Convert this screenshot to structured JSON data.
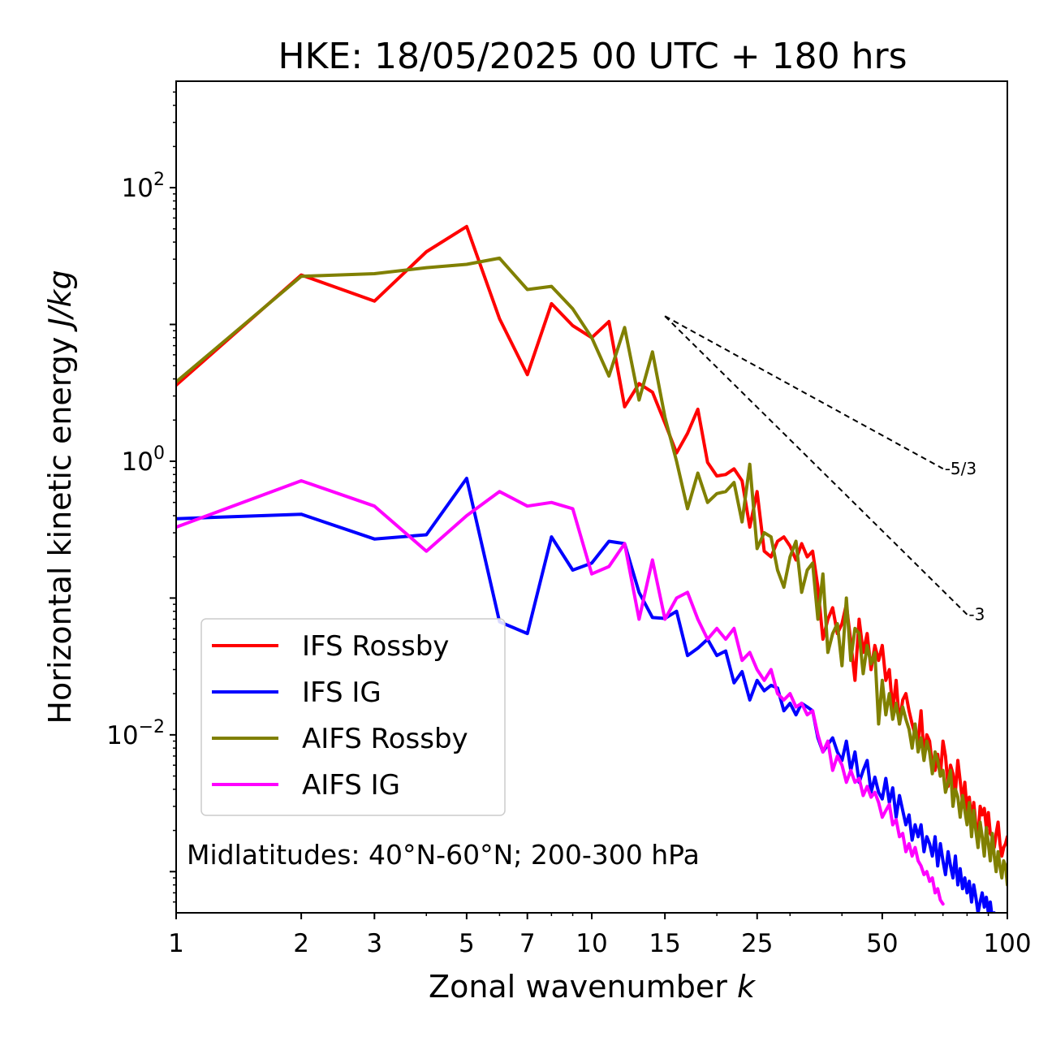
{
  "chart_data": {
    "type": "line",
    "title": "HKE: 18/05/2025 00 UTC + 180 hrs",
    "xlabel": "Zonal wavenumber",
    "xlabel_symbol": "k",
    "ylabel": "Horizontal kinetic energy",
    "ylabel_units": "J/kg",
    "x_scale": "log",
    "y_scale": "log",
    "xlim": [
      1,
      100
    ],
    "ylim": [
      0.0005,
      600
    ],
    "x_ticks": [
      1,
      2,
      3,
      5,
      7,
      10,
      15,
      25,
      50,
      100
    ],
    "x_tick_labels": [
      "1",
      "2",
      "3",
      "5",
      "7",
      "10",
      "15",
      "25",
      "50",
      "100"
    ],
    "y_ticks": [
      {
        "value": 100,
        "base": "10",
        "exp": "2"
      },
      {
        "value": 1,
        "base": "10",
        "exp": "0"
      },
      {
        "value": 0.01,
        "base": "10",
        "exp": "−2"
      }
    ],
    "grid": false,
    "legend_position": "lower-left",
    "annotation": "Midlatitudes: 40°N-60°N; 200-300 hPa",
    "reference_slopes": [
      {
        "label": "-5/3",
        "slope": -1.6667,
        "x": [
          15,
          70
        ],
        "y0": 11.5
      },
      {
        "label": "-3",
        "slope": -3,
        "x": [
          15,
          80
        ],
        "y0": 11.5
      }
    ],
    "series": [
      {
        "name": "IFS Rossby",
        "color": "#ff0000",
        "x": [
          1,
          2,
          3,
          4,
          5,
          6,
          7,
          8,
          9,
          10,
          11,
          12,
          13,
          14,
          15,
          16,
          17,
          18,
          19,
          20,
          21,
          22,
          23,
          24,
          25,
          26,
          27,
          28,
          29,
          30,
          31,
          32,
          33,
          34,
          35,
          36,
          37,
          38,
          39,
          40,
          41,
          42,
          43,
          44,
          45,
          46,
          47,
          48,
          49,
          50,
          51,
          52,
          53,
          54,
          55,
          56,
          57,
          58,
          59,
          60,
          61,
          62,
          63,
          64,
          65,
          66,
          67,
          68,
          69,
          70,
          71,
          72,
          73,
          74,
          75,
          76,
          77,
          78,
          79,
          80,
          81,
          82,
          83,
          84,
          85,
          86,
          87,
          88,
          89,
          90,
          91,
          92,
          93,
          94,
          95,
          96,
          97,
          98,
          99,
          100
        ],
        "y": [
          3.6,
          23,
          14.8,
          34,
          52,
          11,
          4.3,
          14.2,
          9.8,
          8,
          10.5,
          2.5,
          3.7,
          3.2,
          1.9,
          1.15,
          1.6,
          2.4,
          0.98,
          0.78,
          0.8,
          0.88,
          0.72,
          0.33,
          0.6,
          0.22,
          0.2,
          0.26,
          0.28,
          0.24,
          0.19,
          0.25,
          0.2,
          0.22,
          0.12,
          0.05,
          0.07,
          0.085,
          0.055,
          0.065,
          0.09,
          0.048,
          0.025,
          0.07,
          0.04,
          0.055,
          0.03,
          0.045,
          0.035,
          0.045,
          0.025,
          0.03,
          0.015,
          0.025,
          0.012,
          0.018,
          0.02,
          0.015,
          0.012,
          0.01,
          0.009,
          0.015,
          0.007,
          0.01,
          0.009,
          0.006,
          0.0055,
          0.0072,
          0.005,
          0.009,
          0.007,
          0.0042,
          0.006,
          0.0052,
          0.0038,
          0.0065,
          0.0046,
          0.0032,
          0.0045,
          0.0028,
          0.0035,
          0.0024,
          0.0032,
          0.0022,
          0.0018,
          0.003,
          0.0026,
          0.0029,
          0.0021,
          0.0027,
          0.0019,
          0.0018,
          0.0015,
          0.0019,
          0.0023,
          0.0016,
          0.0013,
          0.0015,
          0.0016,
          0.0018
        ]
      },
      {
        "name": "IFS IG",
        "color": "#0000ff",
        "x": [
          1,
          2,
          3,
          4,
          5,
          6,
          7,
          8,
          9,
          10,
          11,
          12,
          13,
          14,
          15,
          16,
          17,
          18,
          19,
          20,
          21,
          22,
          23,
          24,
          25,
          26,
          27,
          28,
          29,
          30,
          31,
          32,
          33,
          34,
          35,
          36,
          37,
          38,
          39,
          40,
          41,
          42,
          43,
          44,
          45,
          46,
          47,
          48,
          49,
          50,
          51,
          52,
          53,
          54,
          55,
          56,
          57,
          58,
          59,
          60,
          61,
          62,
          63,
          64,
          65,
          66,
          67,
          68,
          69,
          70,
          71,
          72,
          73,
          74,
          75,
          76,
          77,
          78,
          79,
          80,
          81,
          82,
          83,
          84,
          85,
          86,
          87,
          88,
          89,
          90,
          91,
          92,
          93,
          94,
          95,
          96,
          97,
          98,
          99,
          100
        ],
        "y": [
          0.38,
          0.41,
          0.27,
          0.29,
          0.75,
          0.067,
          0.055,
          0.28,
          0.16,
          0.18,
          0.26,
          0.25,
          0.11,
          0.072,
          0.071,
          0.08,
          0.038,
          0.043,
          0.05,
          0.038,
          0.041,
          0.024,
          0.029,
          0.018,
          0.025,
          0.021,
          0.023,
          0.022,
          0.015,
          0.017,
          0.014,
          0.017,
          0.016,
          0.015,
          0.0095,
          0.0075,
          0.0085,
          0.0095,
          0.0075,
          0.0065,
          0.009,
          0.0055,
          0.0075,
          0.0045,
          0.0055,
          0.0065,
          0.0038,
          0.0049,
          0.0038,
          0.0034,
          0.0048,
          0.0032,
          0.0041,
          0.0025,
          0.0036,
          0.0028,
          0.0022,
          0.0026,
          0.0017,
          0.0022,
          0.0018,
          0.0022,
          0.0014,
          0.0018,
          0.0016,
          0.0013,
          0.0018,
          0.0011,
          0.0016,
          0.0012,
          0.00095,
          0.0014,
          0.0011,
          0.0009,
          0.0013,
          0.0008,
          0.00105,
          0.00075,
          0.0009,
          0.0007,
          0.00085,
          0.0006,
          0.0008,
          0.00065,
          0.0005,
          0.0006,
          0.0007,
          0.00055,
          0.00065,
          0.0005,
          0.0006,
          0.00045,
          0.0005,
          0.0004,
          0.00035,
          0.00045,
          0.0004,
          0.00038,
          0.0004,
          0.00042
        ]
      },
      {
        "name": "AIFS Rossby",
        "color": "#808000",
        "x": [
          1,
          2,
          3,
          4,
          5,
          6,
          7,
          8,
          9,
          10,
          11,
          12,
          13,
          14,
          15,
          16,
          17,
          18,
          19,
          20,
          21,
          22,
          23,
          24,
          25,
          26,
          27,
          28,
          29,
          30,
          31,
          32,
          33,
          34,
          35,
          36,
          37,
          38,
          39,
          40,
          41,
          42,
          43,
          44,
          45,
          46,
          47,
          48,
          49,
          50,
          51,
          52,
          53,
          54,
          55,
          56,
          57,
          58,
          59,
          60,
          61,
          62,
          63,
          64,
          65,
          66,
          67,
          68,
          69,
          70,
          71,
          72,
          73,
          74,
          75,
          76,
          77,
          78,
          79,
          80,
          81,
          82,
          83,
          84,
          85,
          86,
          87,
          88,
          89,
          90,
          91,
          92,
          93,
          94,
          95,
          96,
          97,
          98,
          99,
          100
        ],
        "y": [
          3.8,
          22.5,
          23.5,
          26,
          27.5,
          30.5,
          18,
          19,
          13,
          8,
          4.2,
          9.5,
          2.8,
          6.3,
          2.1,
          1.0,
          0.45,
          0.82,
          0.5,
          0.58,
          0.6,
          0.7,
          0.36,
          0.95,
          0.23,
          0.3,
          0.28,
          0.16,
          0.12,
          0.2,
          0.26,
          0.11,
          0.16,
          0.18,
          0.07,
          0.15,
          0.04,
          0.055,
          0.065,
          0.032,
          0.1,
          0.035,
          0.06,
          0.055,
          0.028,
          0.045,
          0.033,
          0.04,
          0.012,
          0.025,
          0.014,
          0.02,
          0.013,
          0.017,
          0.012,
          0.016,
          0.013,
          0.011,
          0.008,
          0.012,
          0.0075,
          0.0095,
          0.0065,
          0.009,
          0.0075,
          0.0052,
          0.0075,
          0.0065,
          0.005,
          0.0055,
          0.0038,
          0.0045,
          0.0055,
          0.003,
          0.004,
          0.0035,
          0.0025,
          0.0036,
          0.0028,
          0.0022,
          0.0032,
          0.0018,
          0.0028,
          0.002,
          0.0015,
          0.0023,
          0.0018,
          0.0013,
          0.0021,
          0.0016,
          0.0012,
          0.0019,
          0.0013,
          0.001,
          0.0014,
          0.0011,
          0.0009,
          0.0012,
          0.0011,
          0.0008
        ]
      },
      {
        "name": "AIFS IG",
        "color": "#ff00ff",
        "x": [
          1,
          2,
          3,
          4,
          5,
          6,
          7,
          8,
          9,
          10,
          11,
          12,
          13,
          14,
          15,
          16,
          17,
          18,
          19,
          20,
          21,
          22,
          23,
          24,
          25,
          26,
          27,
          28,
          29,
          30,
          31,
          32,
          33,
          34,
          35,
          36,
          37,
          38,
          39,
          40,
          41,
          42,
          43,
          44,
          45,
          46,
          47,
          48,
          49,
          50,
          51,
          52,
          53,
          54,
          55,
          56,
          57,
          58,
          59,
          60,
          61,
          62,
          63,
          64,
          65,
          66,
          67,
          68,
          69,
          70
        ],
        "y": [
          0.33,
          0.72,
          0.47,
          0.22,
          0.4,
          0.6,
          0.47,
          0.5,
          0.45,
          0.15,
          0.17,
          0.25,
          0.07,
          0.19,
          0.07,
          0.1,
          0.11,
          0.07,
          0.05,
          0.06,
          0.05,
          0.06,
          0.035,
          0.04,
          0.03,
          0.025,
          0.03,
          0.02,
          0.018,
          0.02,
          0.016,
          0.017,
          0.014,
          0.015,
          0.01,
          0.0075,
          0.009,
          0.0055,
          0.007,
          0.006,
          0.0045,
          0.0055,
          0.0045,
          0.0048,
          0.0036,
          0.0042,
          0.0035,
          0.0038,
          0.0032,
          0.0025,
          0.0028,
          0.0031,
          0.0022,
          0.0024,
          0.0018,
          0.0019,
          0.0014,
          0.0016,
          0.0013,
          0.0015,
          0.0012,
          0.0011,
          0.00095,
          0.001,
          0.00085,
          0.0009,
          0.0007,
          0.00075,
          0.00062,
          0.00058
        ]
      }
    ]
  }
}
